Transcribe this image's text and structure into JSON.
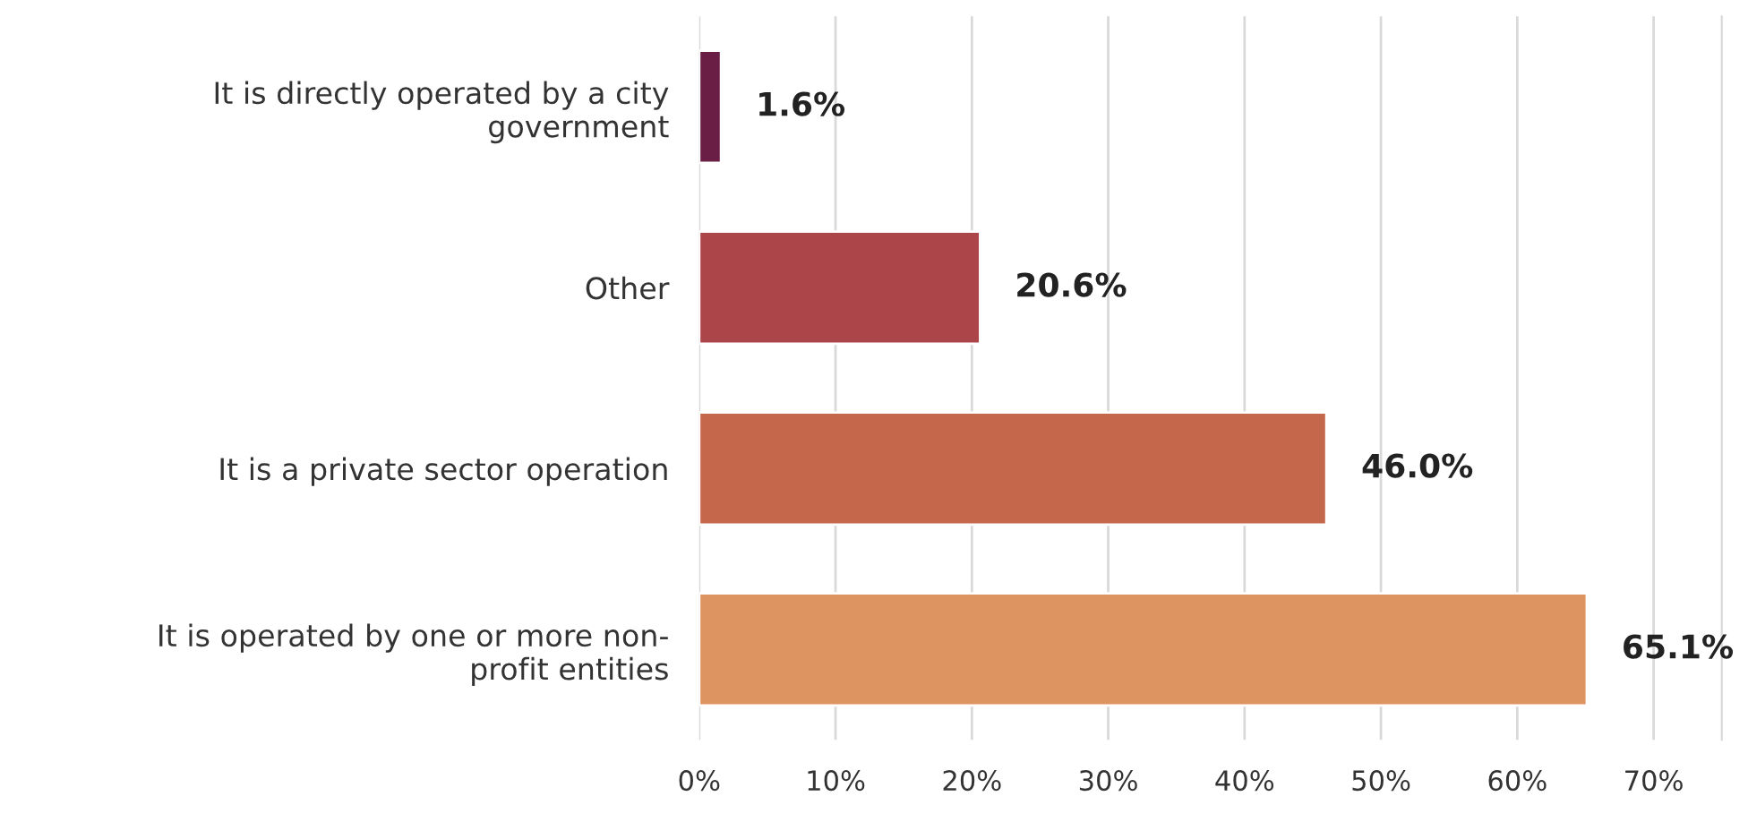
{
  "chart_data": {
    "type": "bar",
    "orientation": "horizontal",
    "categories": [
      "It is directly operated by a city\ngovernment",
      "Other",
      "It is a private sector operation",
      "It is operated by one or more non-\nprofit entities"
    ],
    "values": [
      1.6,
      20.6,
      46.0,
      65.1
    ],
    "colors": [
      "#6b1e45",
      "#ac454a",
      "#c4674b",
      "#de9460"
    ],
    "value_labels": [
      "1.6%",
      "20.6%",
      "46.0%",
      "65.1%"
    ],
    "xlim": [
      0,
      75
    ],
    "xticks": [
      {
        "value": 0,
        "label": "0%"
      },
      {
        "value": 10,
        "label": "10%"
      },
      {
        "value": 20,
        "label": "20%"
      },
      {
        "value": 30,
        "label": "30%"
      },
      {
        "value": 40,
        "label": "40%"
      },
      {
        "value": 50,
        "label": "50%"
      },
      {
        "value": 60,
        "label": "60%"
      },
      {
        "value": 70,
        "label": "70%"
      }
    ],
    "grid": "x",
    "legend": false
  }
}
